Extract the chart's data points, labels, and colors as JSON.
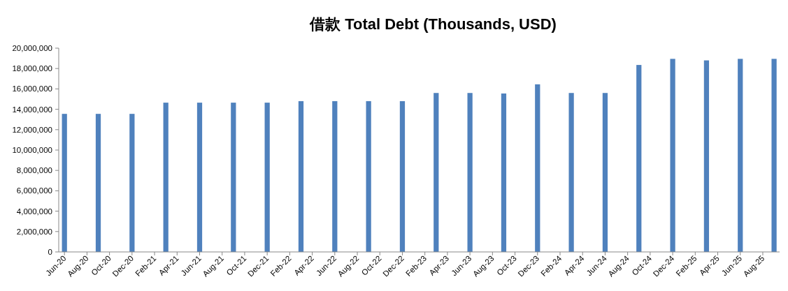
{
  "chart_data": {
    "type": "bar",
    "title": "借款 Total Debt (Thousands, USD)",
    "x": [
      "2020-06",
      "2020-09",
      "2020-12",
      "2021-03",
      "2021-06",
      "2021-09",
      "2021-12",
      "2022-03",
      "2022-06",
      "2022-09",
      "2022-12",
      "2023-03",
      "2023-06",
      "2023-09",
      "2023-12",
      "2024-03",
      "2024-06",
      "2024-09",
      "2024-12",
      "2025-03",
      "2025-06",
      "2025-09"
    ],
    "values": [
      13550000,
      13550000,
      13550000,
      14650000,
      14650000,
      14650000,
      14650000,
      14800000,
      14800000,
      14800000,
      14800000,
      15600000,
      15600000,
      15550000,
      16450000,
      15600000,
      15600000,
      18350000,
      18950000,
      18800000,
      18950000,
      18950000
    ],
    "color": "#4f81bd",
    "ylim": [
      0,
      20000000
    ],
    "yticks": [
      0,
      {
        "value": 2000000,
        "label": "2,000,000"
      },
      {
        "value": 4000000,
        "label": "4,000,000"
      },
      {
        "value": 6000000,
        "label": "6,000,000"
      },
      {
        "value": 8000000,
        "label": "8,000,000"
      },
      {
        "value": 10000000,
        "label": "10,000,000"
      },
      {
        "value": 12000000,
        "label": "12,000,000"
      },
      {
        "value": 14000000,
        "label": "14,000,000"
      },
      {
        "value": 16000000,
        "label": "16,000,000"
      },
      {
        "value": 18000000,
        "label": "18,000,000"
      },
      {
        "value": 20000000,
        "label": "20,000,000"
      }
    ],
    "xlim": [
      "2020-05-16",
      "2025-09-16"
    ],
    "xticks": [
      {
        "value": "2020-06",
        "label": "Jun-20"
      },
      {
        "value": "2020-08",
        "label": "Aug-20"
      },
      {
        "value": "2020-10",
        "label": "Oct-20"
      },
      {
        "value": "2020-12",
        "label": "Dec-20"
      },
      {
        "value": "2021-02",
        "label": "Feb-21"
      },
      {
        "value": "2021-04",
        "label": "Apr-21"
      },
      {
        "value": "2021-06",
        "label": "Jun-21"
      },
      {
        "value": "2021-08",
        "label": "Aug-21"
      },
      {
        "value": "2021-10",
        "label": "Oct-21"
      },
      {
        "value": "2021-12",
        "label": "Dec-21"
      },
      {
        "value": "2022-02",
        "label": "Feb-22"
      },
      {
        "value": "2022-04",
        "label": "Apr-22"
      },
      {
        "value": "2022-06",
        "label": "Jun-22"
      },
      {
        "value": "2022-08",
        "label": "Aug-22"
      },
      {
        "value": "2022-10",
        "label": "Oct-22"
      },
      {
        "value": "2022-12",
        "label": "Dec-22"
      },
      {
        "value": "2023-02",
        "label": "Feb-23"
      },
      {
        "value": "2023-04",
        "label": "Apr-23"
      },
      {
        "value": "2023-06",
        "label": "Jun-23"
      },
      {
        "value": "2023-08",
        "label": "Aug-23"
      },
      {
        "value": "2023-10",
        "label": "Oct-23"
      },
      {
        "value": "2023-12",
        "label": "Dec-23"
      },
      {
        "value": "2024-02",
        "label": "Feb-24"
      },
      {
        "value": "2024-04",
        "label": "Apr-24"
      },
      {
        "value": "2024-06",
        "label": "Jun-24"
      },
      {
        "value": "2024-08",
        "label": "Aug-24"
      },
      {
        "value": "2024-10",
        "label": "Oct-24"
      },
      {
        "value": "2024-12",
        "label": "Dec-24"
      },
      {
        "value": "2025-02",
        "label": "Feb-25"
      },
      {
        "value": "2025-04",
        "label": "Apr-25"
      },
      {
        "value": "2025-06",
        "label": "Jun-25"
      },
      {
        "value": "2025-08",
        "label": "Aug-25"
      }
    ]
  }
}
